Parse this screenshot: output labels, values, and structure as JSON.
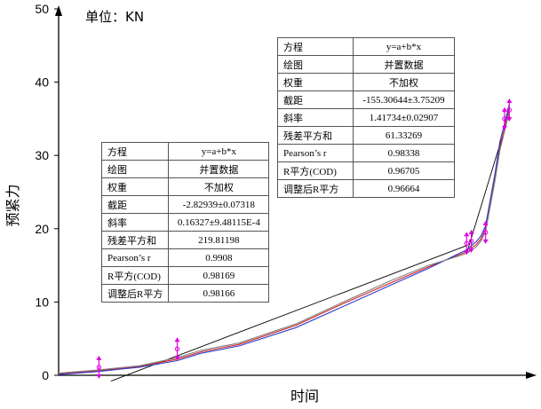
{
  "unit_label": "单位：KN",
  "colors": {
    "axis": "#000000",
    "series_red": "#d62020",
    "series_blue": "#2b3fcf",
    "series_gray": "#7f7f7f",
    "fit_line": "#000000",
    "marker": "#e000e0"
  },
  "chart_data": {
    "type": "line",
    "title": "",
    "xlabel": "时间",
    "ylabel": "预紧力",
    "ylim": [
      0,
      50
    ],
    "yticks": [
      0,
      10,
      20,
      30,
      40,
      50
    ],
    "x_ticks_shown": false,
    "xlim": [
      0,
      100
    ],
    "grid": false,
    "series": [
      {
        "name": "",
        "color": "#d62020",
        "x": [
          0,
          8,
          17,
          25,
          30,
          38,
          50,
          60,
          70,
          78,
          85,
          86.5,
          87,
          88,
          89,
          90,
          92,
          93,
          94,
          95
        ],
        "y": [
          0.2,
          0.6,
          1.2,
          2.2,
          3.2,
          4.2,
          6.8,
          9.8,
          12.6,
          14.8,
          16.6,
          17.0,
          17.4,
          17.8,
          18.6,
          20.0,
          27,
          31,
          33.8,
          36.5
        ]
      },
      {
        "name": "",
        "color": "#2b3fcf",
        "x": [
          0,
          8,
          17,
          25,
          30,
          38,
          50,
          60,
          70,
          78,
          85,
          86.5,
          87,
          88,
          89,
          90,
          92,
          93,
          94,
          95
        ],
        "y": [
          0.1,
          0.5,
          1.1,
          2.0,
          3.0,
          4.0,
          6.5,
          9.4,
          12.3,
          14.6,
          16.8,
          17.3,
          17.7,
          18.2,
          19.0,
          20.4,
          27.6,
          31.8,
          34.4,
          37.0
        ]
      },
      {
        "name": "",
        "color": "#7f7f7f",
        "x": [
          0,
          8,
          17,
          25,
          30,
          38,
          50,
          60,
          70,
          78,
          85,
          86.5,
          87,
          88,
          89,
          90,
          92,
          93,
          94,
          95
        ],
        "y": [
          0.3,
          0.7,
          1.3,
          2.4,
          3.4,
          4.4,
          7.0,
          10.0,
          12.9,
          15.0,
          16.4,
          16.8,
          17.1,
          17.5,
          18.3,
          19.6,
          26.6,
          30.6,
          33.3,
          36.0
        ]
      }
    ],
    "fits": [
      {
        "name": "",
        "x": [
          11,
          86
        ],
        "y": [
          -0.8,
          17.7
        ]
      },
      {
        "name": "",
        "x": [
          86,
          95
        ],
        "y": [
          16.6,
          35.7
        ]
      }
    ],
    "error_markers": {
      "x": [
        8.5,
        25,
        86,
        87,
        90,
        94,
        95
      ],
      "y": [
        1.1,
        3.6,
        18.0,
        18.3,
        19.5,
        35.0,
        36.2
      ]
    },
    "stat_tables": [
      {
        "rows": [
          [
            "方程",
            "y=a+b*x"
          ],
          [
            "绘图",
            "并置数据"
          ],
          [
            "权重",
            "不加权"
          ],
          [
            "截距",
            "-2.82939±0.07318"
          ],
          [
            "斜率",
            "0.16327±9.48115E-4"
          ],
          [
            "残差平方和",
            "219.81198"
          ],
          [
            "Pearson’s r",
            "0.9908"
          ],
          [
            "R平方(COD)",
            "0.98169"
          ],
          [
            "调整后R平方",
            "0.98166"
          ]
        ]
      },
      {
        "rows": [
          [
            "方程",
            "y=a+b*x"
          ],
          [
            "绘图",
            "并置数据"
          ],
          [
            "权重",
            "不加权"
          ],
          [
            "截距",
            "-155.30644±3.75209"
          ],
          [
            "斜率",
            "1.41734±0.02907"
          ],
          [
            "残差平方和",
            "61.33269"
          ],
          [
            "Pearson’s r",
            "0.98338"
          ],
          [
            "R平方(COD)",
            "0.96705"
          ],
          [
            "调整后R平方",
            "0.96664"
          ]
        ]
      }
    ]
  }
}
